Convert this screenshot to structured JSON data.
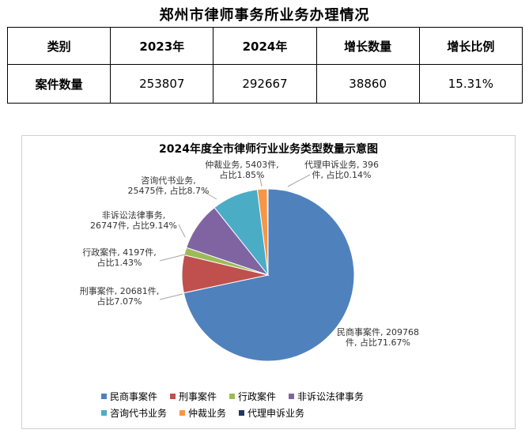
{
  "title": "郑州市律师事务所业务办理情况",
  "table": {
    "headers": [
      "类别",
      "2023年",
      "2024年",
      "增长数量",
      "增长比例"
    ],
    "rows": [
      [
        "案件数量",
        "253807",
        "292667",
        "38860",
        "15.31%"
      ]
    ]
  },
  "chart_data": {
    "type": "pie",
    "title": "2024年度全市律师行业业务类型数量示意图",
    "legend_position": "bottom",
    "slices": [
      {
        "name": "民商事案件",
        "value": 209768,
        "percent": "71.67%",
        "color": "#4f81bd",
        "label_lines": [
          "民商事案件, 209768",
          "件, 占比71.67%"
        ]
      },
      {
        "name": "刑事案件",
        "value": 20681,
        "percent": "7.07%",
        "color": "#c0504d",
        "label_lines": [
          "刑事案件, 20681件,",
          "占比7.07%"
        ]
      },
      {
        "name": "行政案件",
        "value": 4197,
        "percent": "1.43%",
        "color": "#9bbb59",
        "label_lines": [
          "行政案件, 4197件,",
          "占比1.43%"
        ]
      },
      {
        "name": "非诉讼法律事务",
        "value": 26747,
        "percent": "9.14%",
        "color": "#8064a2",
        "label_lines": [
          "非诉讼法律事务,",
          "26747件, 占比9.14%"
        ]
      },
      {
        "name": "咨询代书业务",
        "value": 25475,
        "percent": "8.7%",
        "color": "#4bacc6",
        "label_lines": [
          "咨询代书业务,",
          "25475件, 占比8.7%"
        ]
      },
      {
        "name": "仲裁业务",
        "value": 5403,
        "percent": "1.85%",
        "color": "#f79646",
        "label_lines": [
          "仲裁业务, 5403件,",
          "占比1.85%"
        ]
      },
      {
        "name": "代理申诉业务",
        "value": 396,
        "percent": "0.14%",
        "color": "#1f3864",
        "label_lines": [
          "代理申诉业务, 396",
          "件, 占比0.14%"
        ]
      }
    ]
  }
}
